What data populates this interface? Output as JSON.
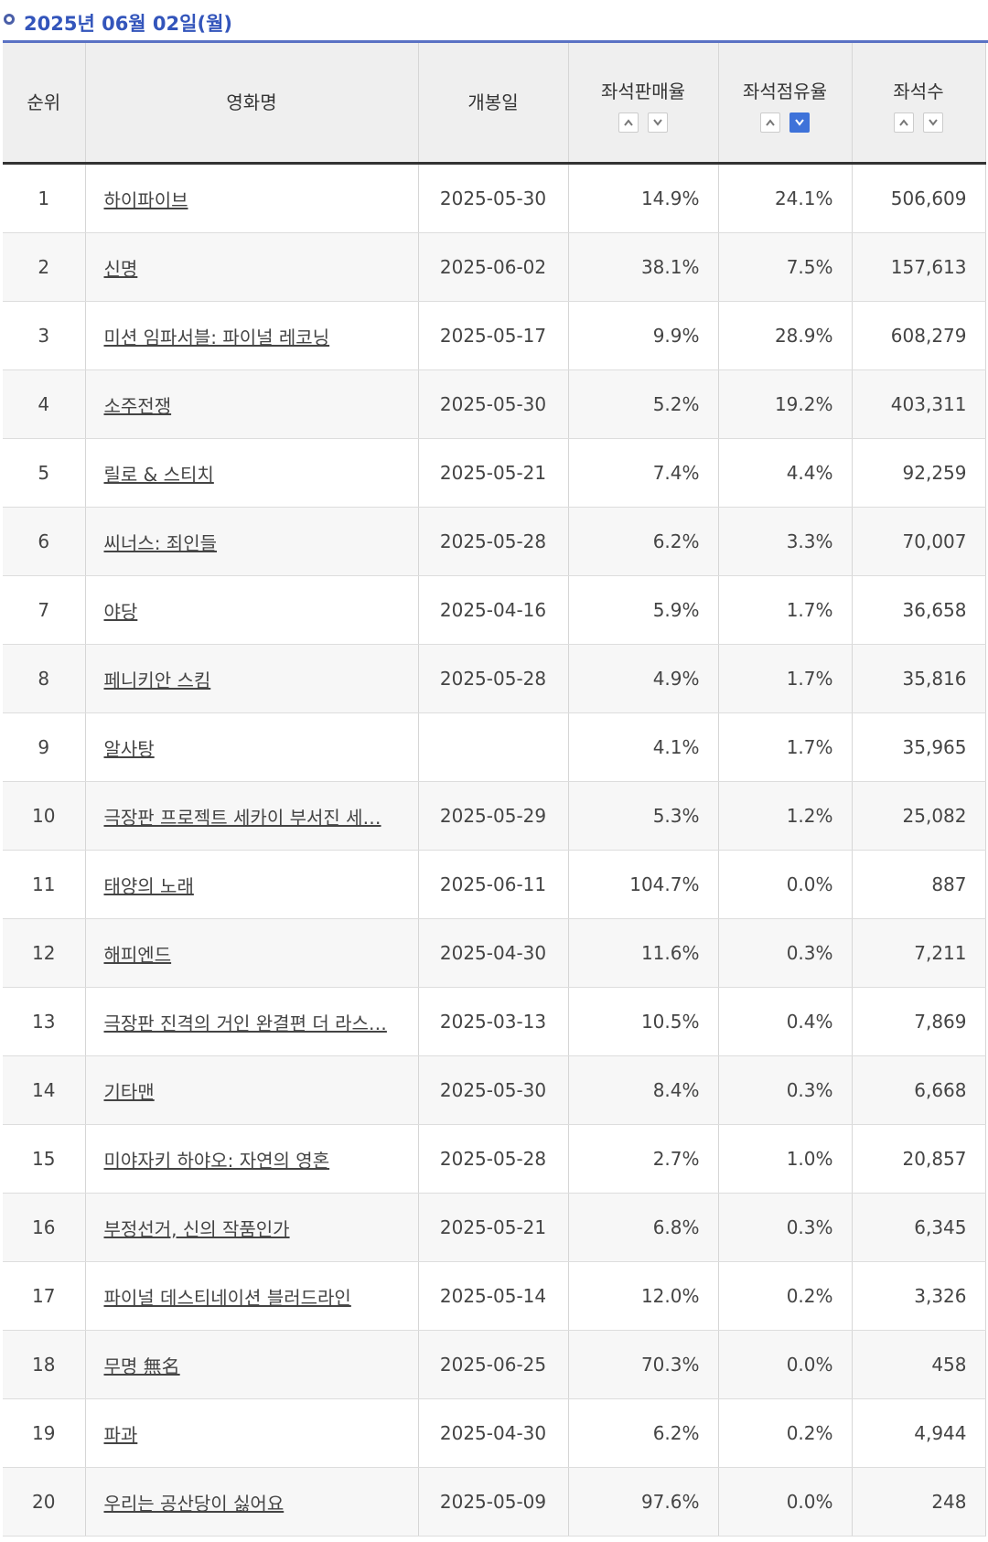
{
  "header": {
    "date_title": "2025년 06월 02일(월)"
  },
  "columns": {
    "rank": "순위",
    "title": "영화명",
    "release": "개봉일",
    "sales_rate": "좌석판매율",
    "occupancy": "좌석점유율",
    "seats": "좌석수"
  },
  "sort_state": {
    "active_column": "좌석점유율",
    "direction": "descending"
  },
  "rows": [
    {
      "rank": "1",
      "title": "하이파이브",
      "release": "2025-05-30",
      "sales_rate": "14.9%",
      "occupancy": "24.1%",
      "seats": "506,609"
    },
    {
      "rank": "2",
      "title": "신명",
      "release": "2025-06-02",
      "sales_rate": "38.1%",
      "occupancy": "7.5%",
      "seats": "157,613"
    },
    {
      "rank": "3",
      "title": "미션 임파서블: 파이널 레코닝",
      "release": "2025-05-17",
      "sales_rate": "9.9%",
      "occupancy": "28.9%",
      "seats": "608,279"
    },
    {
      "rank": "4",
      "title": "소주전쟁",
      "release": "2025-05-30",
      "sales_rate": "5.2%",
      "occupancy": "19.2%",
      "seats": "403,311"
    },
    {
      "rank": "5",
      "title": "릴로 & 스티치",
      "release": "2025-05-21",
      "sales_rate": "7.4%",
      "occupancy": "4.4%",
      "seats": "92,259"
    },
    {
      "rank": "6",
      "title": "씨너스: 죄인들",
      "release": "2025-05-28",
      "sales_rate": "6.2%",
      "occupancy": "3.3%",
      "seats": "70,007"
    },
    {
      "rank": "7",
      "title": "야당",
      "release": "2025-04-16",
      "sales_rate": "5.9%",
      "occupancy": "1.7%",
      "seats": "36,658"
    },
    {
      "rank": "8",
      "title": "페니키안 스킴",
      "release": "2025-05-28",
      "sales_rate": "4.9%",
      "occupancy": "1.7%",
      "seats": "35,816"
    },
    {
      "rank": "9",
      "title": "알사탕",
      "release": "",
      "sales_rate": "4.1%",
      "occupancy": "1.7%",
      "seats": "35,965"
    },
    {
      "rank": "10",
      "title": "극장판 프로젝트 세카이 부서진 세…",
      "release": "2025-05-29",
      "sales_rate": "5.3%",
      "occupancy": "1.2%",
      "seats": "25,082"
    },
    {
      "rank": "11",
      "title": "태양의 노래",
      "release": "2025-06-11",
      "sales_rate": "104.7%",
      "occupancy": "0.0%",
      "seats": "887"
    },
    {
      "rank": "12",
      "title": "해피엔드",
      "release": "2025-04-30",
      "sales_rate": "11.6%",
      "occupancy": "0.3%",
      "seats": "7,211"
    },
    {
      "rank": "13",
      "title": "극장판 진격의 거인 완결편 더 라스…",
      "release": "2025-03-13",
      "sales_rate": "10.5%",
      "occupancy": "0.4%",
      "seats": "7,869"
    },
    {
      "rank": "14",
      "title": "기타맨",
      "release": "2025-05-30",
      "sales_rate": "8.4%",
      "occupancy": "0.3%",
      "seats": "6,668"
    },
    {
      "rank": "15",
      "title": "미야자키 하야오: 자연의 영혼",
      "release": "2025-05-28",
      "sales_rate": "2.7%",
      "occupancy": "1.0%",
      "seats": "20,857"
    },
    {
      "rank": "16",
      "title": "부정선거, 신의 작품인가",
      "release": "2025-05-21",
      "sales_rate": "6.8%",
      "occupancy": "0.3%",
      "seats": "6,345"
    },
    {
      "rank": "17",
      "title": "파이널 데스티네이션 블러드라인",
      "release": "2025-05-14",
      "sales_rate": "12.0%",
      "occupancy": "0.2%",
      "seats": "3,326"
    },
    {
      "rank": "18",
      "title": "무명 無名",
      "release": "2025-06-25",
      "sales_rate": "70.3%",
      "occupancy": "0.0%",
      "seats": "458"
    },
    {
      "rank": "19",
      "title": "파과",
      "release": "2025-04-30",
      "sales_rate": "6.2%",
      "occupancy": "0.2%",
      "seats": "4,944"
    },
    {
      "rank": "20",
      "title": "우리는 공산당이 싫어요",
      "release": "2025-05-09",
      "sales_rate": "97.6%",
      "occupancy": "0.0%",
      "seats": "248"
    }
  ],
  "colors": {
    "title": "#3355bb",
    "title_rule": "#5a72c4",
    "active_sort": "#3e72d9",
    "header_bg": "#efefef"
  }
}
